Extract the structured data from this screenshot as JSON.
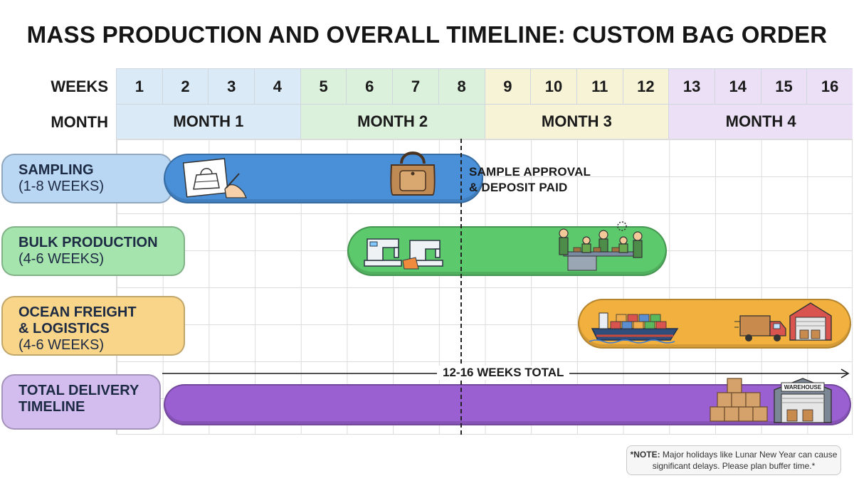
{
  "title": "MASS PRODUCTION AND OVERALL TIMELINE: CUSTOM BAG ORDER",
  "chart_data": {
    "type": "gantt",
    "title": "MASS PRODUCTION AND OVERALL TIMELINE: CUSTOM BAG ORDER",
    "weeks_label": "WEEKS",
    "month_label": "MONTH",
    "weeks": [
      "1",
      "2",
      "3",
      "4",
      "5",
      "6",
      "7",
      "8",
      "9",
      "10",
      "11",
      "12",
      "13",
      "14",
      "15",
      "16"
    ],
    "months": [
      {
        "label": "MONTH 1",
        "start_week": 1,
        "end_week": 4,
        "color": "#dbeaf7"
      },
      {
        "label": "MONTH 2",
        "start_week": 5,
        "end_week": 8,
        "color": "#dcf1dc"
      },
      {
        "label": "MONTH 3",
        "start_week": 9,
        "end_week": 12,
        "color": "#f6f3d6"
      },
      {
        "label": "MONTH 4",
        "start_week": 13,
        "end_week": 16,
        "color": "#ebe0f5"
      }
    ],
    "phases": [
      {
        "name": "SAMPLING",
        "duration": "(1-8 WEEKS)",
        "start_week": 2,
        "end_week": 8,
        "color": "#4a90d9",
        "label_color": "#b9d6f2"
      },
      {
        "name": "BULK PRODUCTION",
        "duration": "(4-6 WEEKS)",
        "start_week": 6,
        "end_week": 12,
        "color": "#5cc96c",
        "label_color": "#a6e4ae"
      },
      {
        "name": "OCEAN FREIGHT\n& LOGISTICS",
        "duration": "(4-6 WEEKS)",
        "start_week": 11,
        "end_week": 16,
        "color": "#f2b13e",
        "label_color": "#f8d588"
      },
      {
        "name": "TOTAL DELIVERY\nTIMELINE",
        "duration": "",
        "start_week": 2,
        "end_week": 16,
        "color": "#9a5fd1",
        "label_color": "#d3bdef"
      }
    ],
    "milestone": {
      "label_line1": "SAMPLE APPROVAL",
      "label_line2": "& DEPOSIT PAID",
      "at_week_end": 8
    },
    "total_span_label": "12-16 WEEKS TOTAL"
  },
  "note": {
    "bold": "*NOTE:",
    "text": " Major holidays like Lunar New Year can cause significant delays. Please plan buffer time.*"
  },
  "warehouse_sign": "WAREHOUSE",
  "icons": [
    "sketch-icon",
    "handbag-icon",
    "sewing-machine-icon",
    "workers-icon",
    "cargo-ship-icon",
    "delivery-truck-icon",
    "warehouse-icon",
    "boxes-icon"
  ]
}
